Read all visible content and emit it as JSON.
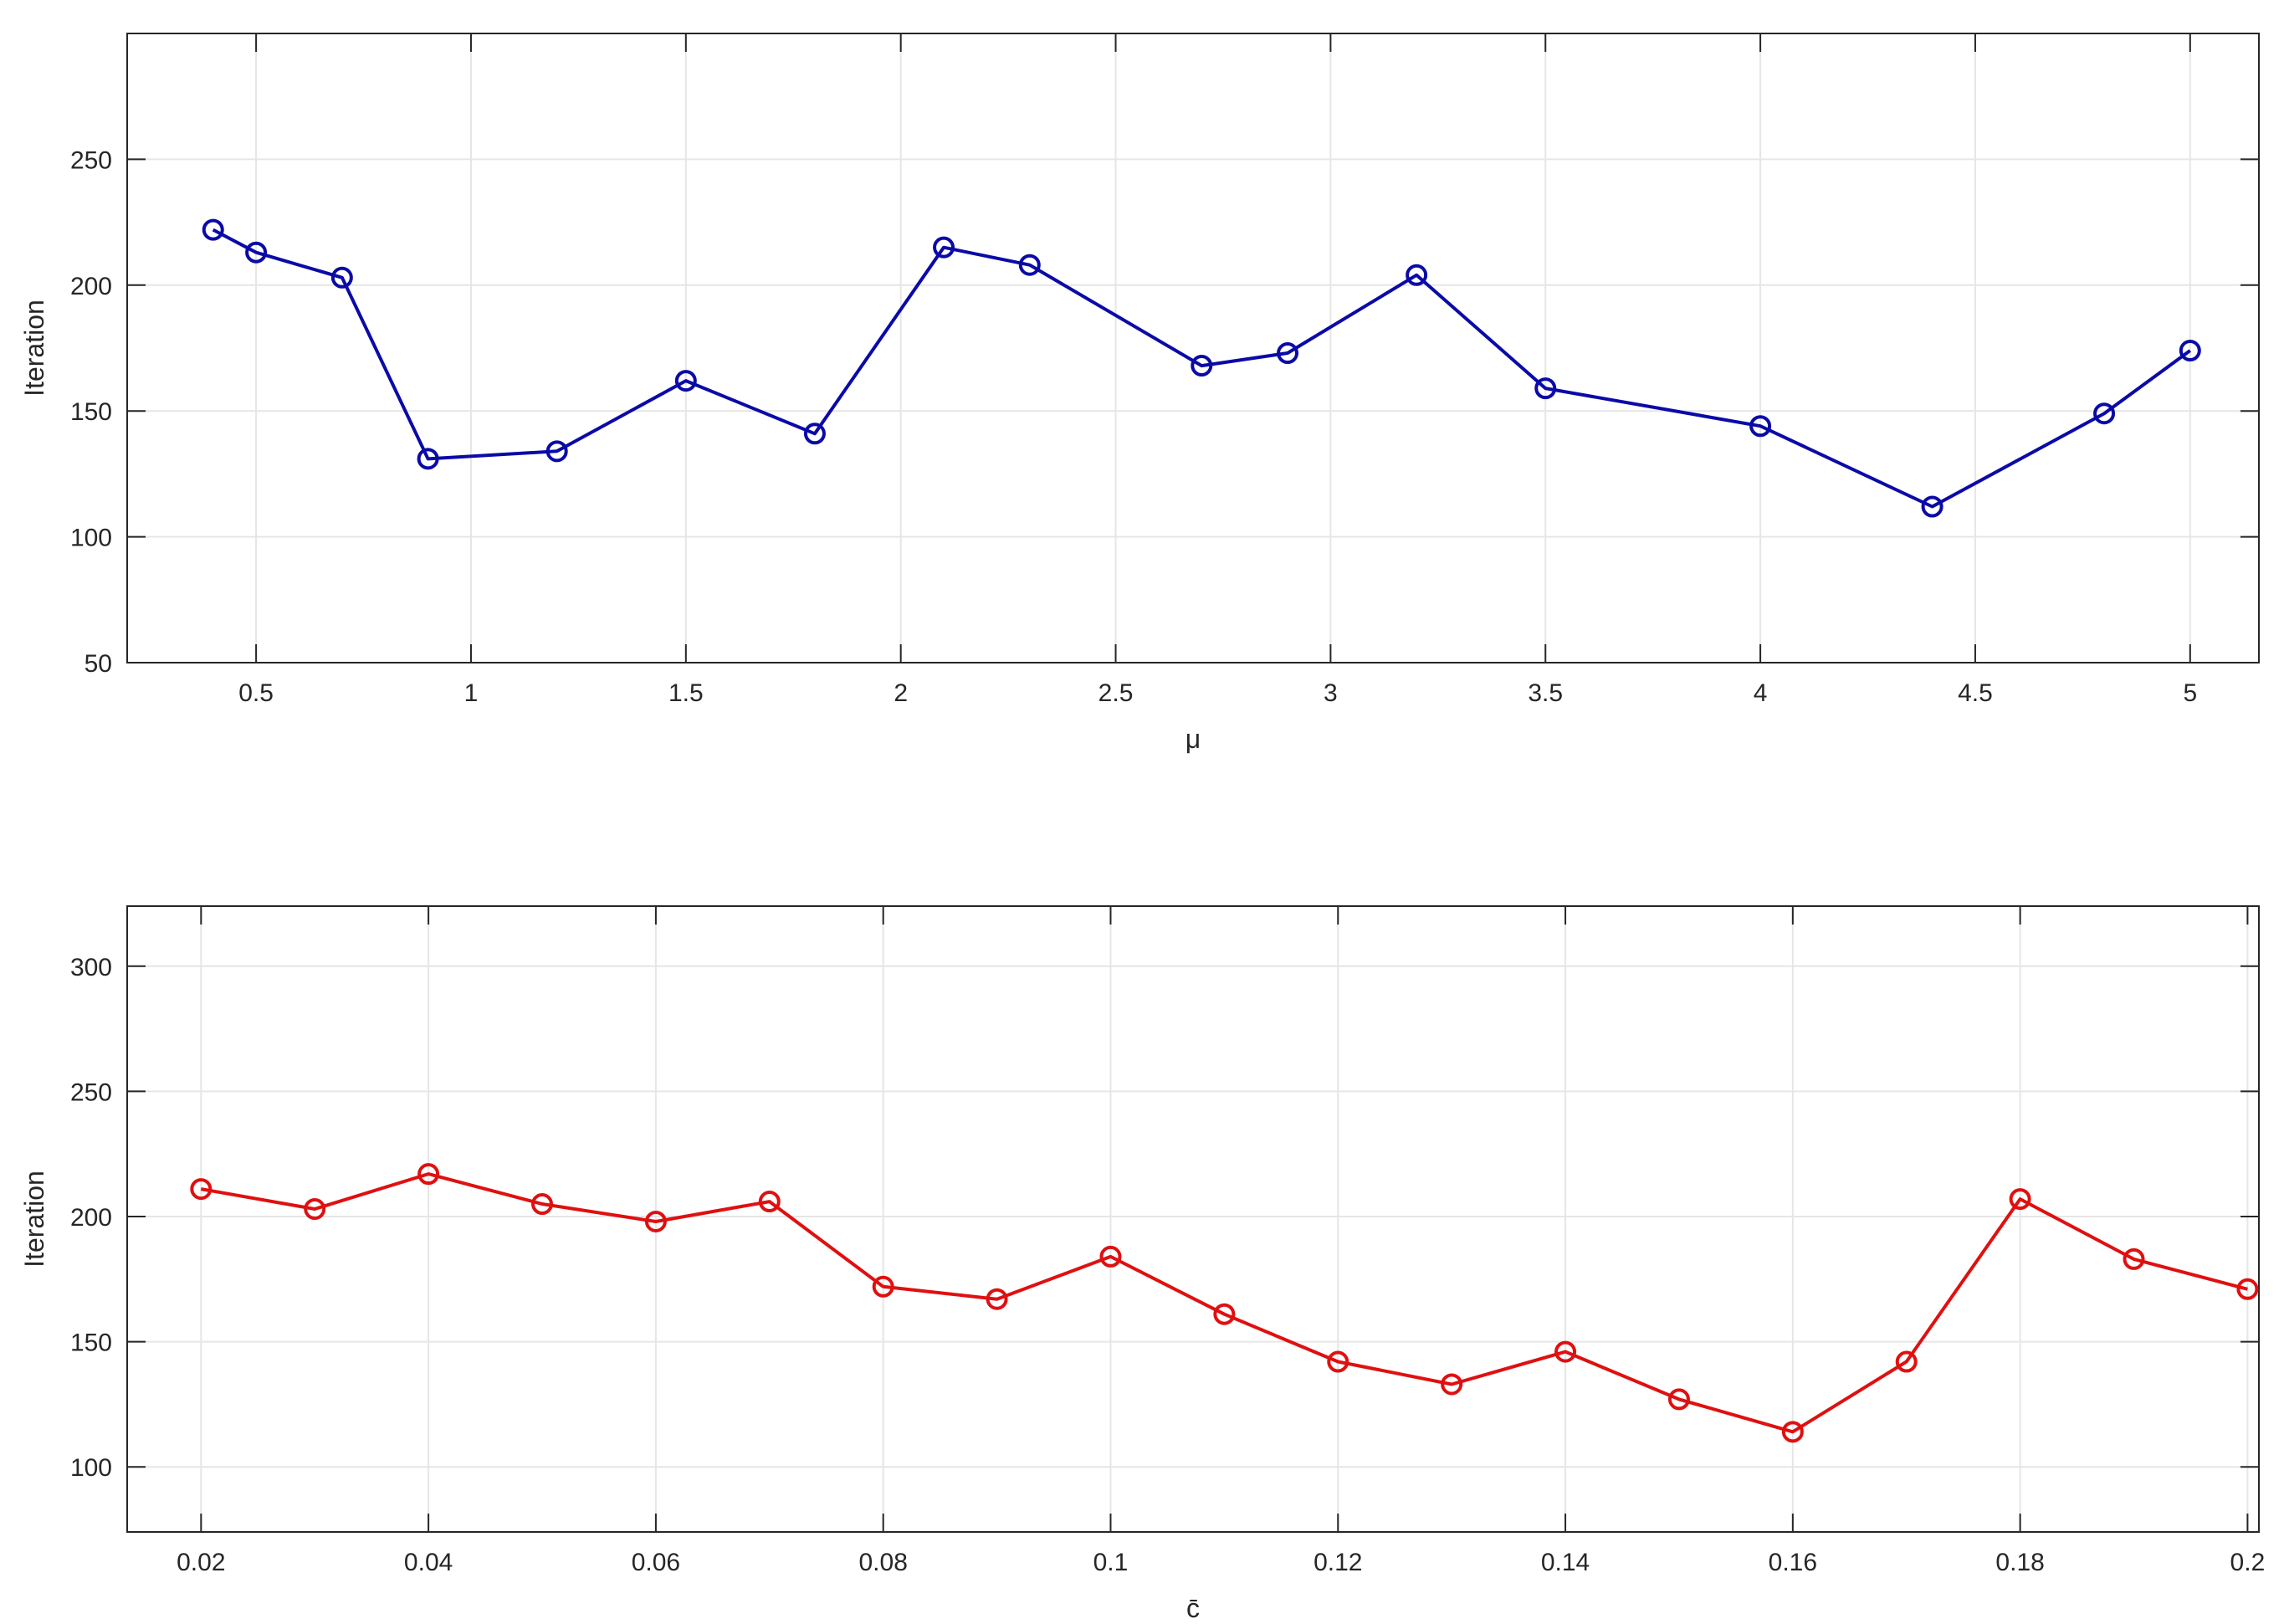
{
  "chart_data": [
    {
      "type": "line",
      "xlabel": "μ",
      "ylabel": "Iteration",
      "xlim": [
        0.2,
        5.16
      ],
      "ylim": [
        50,
        300
      ],
      "xticks": [
        0.5,
        1,
        1.5,
        2,
        2.5,
        3,
        3.5,
        4,
        4.5,
        5
      ],
      "xtick_labels": [
        "0.5",
        "1",
        "1.5",
        "2",
        "2.5",
        "3",
        "3.5",
        "4",
        "4.5",
        "5"
      ],
      "yticks": [
        50,
        100,
        150,
        200,
        250
      ],
      "ytick_labels": [
        "50",
        "100",
        "150",
        "200",
        "250"
      ],
      "grid": true,
      "color": "#0a0aa8",
      "series": [
        {
          "x": [
            0.4,
            0.5,
            0.7,
            0.9,
            1.2,
            1.5,
            1.8,
            2.1,
            2.3,
            2.7,
            2.9,
            3.2,
            3.5,
            4.0,
            4.4,
            4.8,
            5.0
          ],
          "y": [
            222,
            213,
            203,
            131,
            134,
            162,
            141,
            215,
            208,
            168,
            173,
            204,
            159,
            144,
            112,
            149,
            174
          ]
        }
      ]
    },
    {
      "type": "line",
      "xlabel": "c̄",
      "ylabel": "Iteration",
      "xlim": [
        0.0135,
        0.201
      ],
      "ylim": [
        74,
        324
      ],
      "xticks": [
        0.02,
        0.04,
        0.06,
        0.08,
        0.1,
        0.12,
        0.14,
        0.16,
        0.18,
        0.2
      ],
      "xtick_labels": [
        "0.02",
        "0.04",
        "0.06",
        "0.08",
        "0.1",
        "0.12",
        "0.14",
        "0.16",
        "0.18",
        "0.2"
      ],
      "yticks": [
        100,
        150,
        200,
        250,
        300
      ],
      "ytick_labels": [
        "100",
        "150",
        "200",
        "250",
        "300"
      ],
      "grid": true,
      "color": "#e01010",
      "series": [
        {
          "x": [
            0.02,
            0.03,
            0.04,
            0.05,
            0.06,
            0.07,
            0.08,
            0.09,
            0.1,
            0.11,
            0.12,
            0.13,
            0.14,
            0.15,
            0.16,
            0.17,
            0.18,
            0.19,
            0.2
          ],
          "y": [
            211,
            203,
            217,
            205,
            198,
            206,
            172,
            167,
            184,
            161,
            142,
            133,
            146,
            127,
            114,
            142,
            207,
            183,
            171
          ]
        }
      ]
    }
  ]
}
